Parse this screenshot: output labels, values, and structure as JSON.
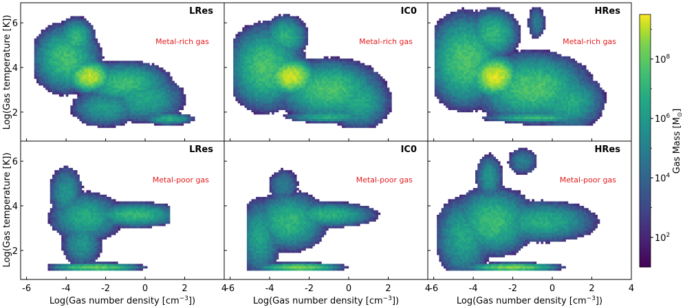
{
  "chart_data": {
    "type": "heatmap",
    "xlabel": "Log(Gas number density [cm$^{-3}$])",
    "xlabel_text": "Log(Gas number density [cm",
    "xlabel_sup": "−3",
    "xlabel_tail": "])",
    "ylabel": "Log(Gas temperature [K])",
    "xlim": [
      -6.3,
      4.0
    ],
    "ylim": [
      0.7,
      6.9
    ],
    "xticks": [
      "-6",
      "-4",
      "-2",
      "0",
      "2",
      "4"
    ],
    "yticks": [
      "2",
      "4",
      "6"
    ],
    "colorbar": {
      "label": "Gas Mass [M",
      "label_sub": "⊙",
      "label_tail": "]",
      "scale": "log",
      "range_log10": [
        1.0,
        9.5
      ],
      "ticks": [
        "10",
        "10",
        "10",
        "10"
      ],
      "tick_exponents": [
        "2",
        "4",
        "6",
        "8"
      ],
      "tick_values_log10": [
        2,
        4,
        6,
        8
      ]
    },
    "rows": [
      {
        "annotation": "Metal-rich gas",
        "annotation_color": "#e31a1c"
      },
      {
        "annotation": "Metal-poor gas",
        "annotation_color": "#e31a1c"
      }
    ],
    "columns": [
      {
        "title": "LRes"
      },
      {
        "title": "IC0"
      },
      {
        "title": "HRes"
      }
    ],
    "panels": [
      {
        "row": 0,
        "col": 0,
        "title": "LRes",
        "annotation": "Metal-rich gas",
        "blobs": [
          {
            "x": -2.8,
            "y": 3.6,
            "sx": 0.55,
            "sy": 0.35,
            "peak": 8.7
          },
          {
            "x": -4.0,
            "y": 4.4,
            "sx": 0.9,
            "sy": 0.8,
            "peak": 6.9
          },
          {
            "x": -3.5,
            "y": 5.3,
            "sx": 0.5,
            "sy": 0.5,
            "peak": 6.6
          },
          {
            "x": -1.0,
            "y": 3.3,
            "sx": 1.2,
            "sy": 0.5,
            "peak": 6.8
          },
          {
            "x": 0.0,
            "y": 2.6,
            "sx": 1.1,
            "sy": 0.6,
            "peak": 6.0
          },
          {
            "x": -2.0,
            "y": 2.2,
            "sx": 1.0,
            "sy": 0.5,
            "peak": 5.6
          },
          {
            "x": 1.2,
            "y": 1.7,
            "sx": 0.7,
            "sy": 0.15,
            "peak": 6.2
          }
        ],
        "extent": {
          "xmin": -5.6,
          "xmax": 2.6,
          "ymin": 1.3,
          "ymax": 6.4
        }
      },
      {
        "row": 0,
        "col": 1,
        "title": "IC0",
        "annotation": "Metal-rich gas",
        "blobs": [
          {
            "x": -2.9,
            "y": 3.6,
            "sx": 0.6,
            "sy": 0.4,
            "peak": 8.9
          },
          {
            "x": -4.2,
            "y": 4.0,
            "sx": 1.0,
            "sy": 1.0,
            "peak": 7.0
          },
          {
            "x": -3.2,
            "y": 5.4,
            "sx": 0.6,
            "sy": 0.5,
            "peak": 6.4
          },
          {
            "x": -1.0,
            "y": 3.0,
            "sx": 1.4,
            "sy": 0.7,
            "peak": 7.0
          },
          {
            "x": 0.5,
            "y": 2.5,
            "sx": 0.9,
            "sy": 0.7,
            "peak": 6.1
          },
          {
            "x": -1.0,
            "y": 1.8,
            "sx": 1.2,
            "sy": 0.15,
            "peak": 6.2
          }
        ],
        "extent": {
          "xmin": -5.8,
          "xmax": 2.4,
          "ymin": 1.3,
          "ymax": 6.6
        }
      },
      {
        "row": 0,
        "col": 2,
        "title": "HRes",
        "annotation": "Metal-rich gas",
        "blobs": [
          {
            "x": -2.9,
            "y": 3.6,
            "sx": 0.6,
            "sy": 0.45,
            "peak": 9.0
          },
          {
            "x": -4.4,
            "y": 4.3,
            "sx": 1.0,
            "sy": 1.1,
            "peak": 7.1
          },
          {
            "x": -3.0,
            "y": 5.5,
            "sx": 0.7,
            "sy": 0.6,
            "peak": 6.6
          },
          {
            "x": -1.0,
            "y": 3.1,
            "sx": 1.5,
            "sy": 0.8,
            "peak": 7.1
          },
          {
            "x": 0.8,
            "y": 2.5,
            "sx": 1.0,
            "sy": 0.7,
            "peak": 6.2
          },
          {
            "x": -0.8,
            "y": 1.75,
            "sx": 1.4,
            "sy": 0.12,
            "peak": 6.6
          },
          {
            "x": -0.8,
            "y": 6.0,
            "sx": 0.3,
            "sy": 0.5,
            "peak": 4.5
          }
        ],
        "extent": {
          "xmin": -5.9,
          "xmax": 2.8,
          "ymin": 1.4,
          "ymax": 6.8
        }
      },
      {
        "row": 1,
        "col": 0,
        "title": "LRes",
        "annotation": "Metal-poor gas",
        "blobs": [
          {
            "x": -3.0,
            "y": 3.5,
            "sx": 1.0,
            "sy": 0.6,
            "peak": 6.2
          },
          {
            "x": -4.0,
            "y": 4.6,
            "sx": 0.5,
            "sy": 0.7,
            "peak": 5.4
          },
          {
            "x": -0.5,
            "y": 3.6,
            "sx": 1.2,
            "sy": 0.3,
            "peak": 6.6
          },
          {
            "x": -2.5,
            "y": 1.25,
            "sx": 1.2,
            "sy": 0.1,
            "peak": 7.6
          },
          {
            "x": -3.2,
            "y": 2.3,
            "sx": 0.6,
            "sy": 0.6,
            "peak": 5.4
          }
        ],
        "extent": {
          "xmin": -4.9,
          "xmax": 1.2,
          "ymin": 1.15,
          "ymax": 5.8
        }
      },
      {
        "row": 1,
        "col": 1,
        "title": "IC0",
        "annotation": "Metal-poor gas",
        "blobs": [
          {
            "x": -3.0,
            "y": 3.3,
            "sx": 1.0,
            "sy": 0.7,
            "peak": 6.6
          },
          {
            "x": -4.5,
            "y": 2.6,
            "sx": 0.6,
            "sy": 1.0,
            "peak": 5.8
          },
          {
            "x": -1.0,
            "y": 3.6,
            "sx": 1.3,
            "sy": 0.3,
            "peak": 6.4
          },
          {
            "x": -2.5,
            "y": 1.25,
            "sx": 1.1,
            "sy": 0.1,
            "peak": 7.8
          },
          {
            "x": -3.3,
            "y": 4.9,
            "sx": 0.5,
            "sy": 0.5,
            "peak": 4.6
          }
        ],
        "extent": {
          "xmin": -5.2,
          "xmax": 1.9,
          "ymin": 1.15,
          "ymax": 5.8
        }
      },
      {
        "row": 1,
        "col": 2,
        "title": "HRes",
        "annotation": "Metal-poor gas",
        "blobs": [
          {
            "x": -3.0,
            "y": 3.3,
            "sx": 1.1,
            "sy": 0.8,
            "peak": 6.8
          },
          {
            "x": -4.5,
            "y": 2.6,
            "sx": 0.8,
            "sy": 1.0,
            "peak": 6.0
          },
          {
            "x": -0.5,
            "y": 3.3,
            "sx": 1.5,
            "sy": 0.5,
            "peak": 6.2
          },
          {
            "x": -2.0,
            "y": 1.25,
            "sx": 1.2,
            "sy": 0.1,
            "peak": 7.9
          },
          {
            "x": -3.2,
            "y": 5.3,
            "sx": 0.4,
            "sy": 0.6,
            "peak": 5.4
          },
          {
            "x": -1.5,
            "y": 6.0,
            "sx": 0.5,
            "sy": 0.4,
            "peak": 4.6
          }
        ],
        "extent": {
          "xmin": -5.8,
          "xmax": 2.6,
          "ymin": 1.15,
          "ymax": 6.6
        }
      }
    ]
  }
}
